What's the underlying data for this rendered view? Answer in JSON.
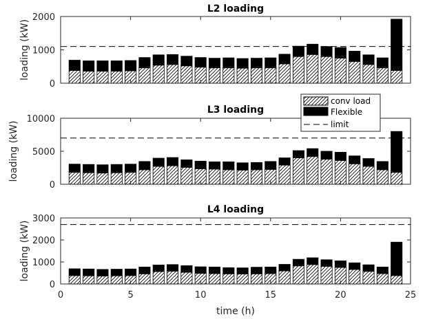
{
  "chart_data": [
    {
      "type": "bar",
      "stacked": true,
      "title": "L2 loading",
      "ylabel": "loading (kW)",
      "xlabel": "",
      "xlim": [
        0,
        25
      ],
      "ylim": [
        0,
        2000
      ],
      "yticks": [
        0,
        1000,
        2000
      ],
      "xticks": [
        0,
        5,
        10,
        15,
        20,
        25
      ],
      "show_xtick_labels": false,
      "limit": 1100,
      "x": [
        1,
        2,
        3,
        4,
        5,
        6,
        7,
        8,
        9,
        10,
        11,
        12,
        13,
        14,
        15,
        16,
        17,
        18,
        19,
        20,
        21,
        22,
        23,
        24
      ],
      "series": [
        {
          "name": "conv load",
          "pattern": "hatch",
          "values": [
            380,
            360,
            360,
            360,
            370,
            460,
            540,
            560,
            520,
            480,
            460,
            460,
            450,
            460,
            460,
            580,
            800,
            860,
            800,
            750,
            650,
            560,
            460,
            380
          ]
        },
        {
          "name": "Flexible",
          "color": "#000000",
          "values": [
            310,
            310,
            310,
            310,
            310,
            310,
            310,
            300,
            290,
            290,
            290,
            300,
            290,
            290,
            300,
            290,
            310,
            310,
            300,
            320,
            310,
            290,
            300,
            1540
          ]
        }
      ]
    },
    {
      "type": "bar",
      "stacked": true,
      "title": "L3 loading",
      "ylabel": "loading (kW)",
      "xlabel": "",
      "xlim": [
        0,
        25
      ],
      "ylim": [
        0,
        10000
      ],
      "yticks": [
        0,
        5000,
        10000
      ],
      "xticks": [
        0,
        5,
        10,
        15,
        20,
        25
      ],
      "show_xtick_labels": false,
      "limit": 7000,
      "legend": {
        "position": "top-right",
        "entries": [
          "conv load",
          "Flexible",
          "limit"
        ]
      },
      "x": [
        1,
        2,
        3,
        4,
        5,
        6,
        7,
        8,
        9,
        10,
        11,
        12,
        13,
        14,
        15,
        16,
        17,
        18,
        19,
        20,
        21,
        22,
        23,
        24
      ],
      "series": [
        {
          "name": "conv load",
          "pattern": "hatch",
          "values": [
            1800,
            1750,
            1700,
            1750,
            1800,
            2200,
            2700,
            2800,
            2550,
            2350,
            2300,
            2200,
            2150,
            2200,
            2250,
            2900,
            4000,
            4200,
            3800,
            3600,
            3100,
            2700,
            2200,
            1800
          ]
        },
        {
          "name": "Flexible",
          "color": "#000000",
          "values": [
            1250,
            1250,
            1250,
            1250,
            1250,
            1250,
            1250,
            1250,
            1150,
            1150,
            1100,
            1200,
            1100,
            1100,
            1200,
            1100,
            1100,
            1200,
            1200,
            1250,
            1200,
            1200,
            1250,
            6200
          ]
        }
      ]
    },
    {
      "type": "bar",
      "stacked": true,
      "title": "L4 loading",
      "ylabel": "loading (kW)",
      "xlabel": "time (h)",
      "xlim": [
        0,
        25
      ],
      "ylim": [
        0,
        3000
      ],
      "yticks": [
        0,
        1000,
        2000,
        3000
      ],
      "xticks": [
        0,
        5,
        10,
        15,
        20,
        25
      ],
      "show_xtick_labels": true,
      "limit": 2700,
      "x": [
        1,
        2,
        3,
        4,
        5,
        6,
        7,
        8,
        9,
        10,
        11,
        12,
        13,
        14,
        15,
        16,
        17,
        18,
        19,
        20,
        21,
        22,
        23,
        24
      ],
      "series": [
        {
          "name": "conv load",
          "pattern": "hatch",
          "values": [
            380,
            370,
            360,
            370,
            380,
            460,
            560,
            580,
            530,
            480,
            470,
            460,
            450,
            460,
            470,
            590,
            820,
            880,
            800,
            750,
            660,
            570,
            470,
            380
          ]
        },
        {
          "name": "Flexible",
          "color": "#000000",
          "values": [
            310,
            310,
            300,
            300,
            300,
            310,
            300,
            300,
            300,
            300,
            300,
            280,
            280,
            300,
            300,
            300,
            300,
            310,
            300,
            300,
            300,
            300,
            300,
            1520
          ]
        }
      ]
    }
  ]
}
